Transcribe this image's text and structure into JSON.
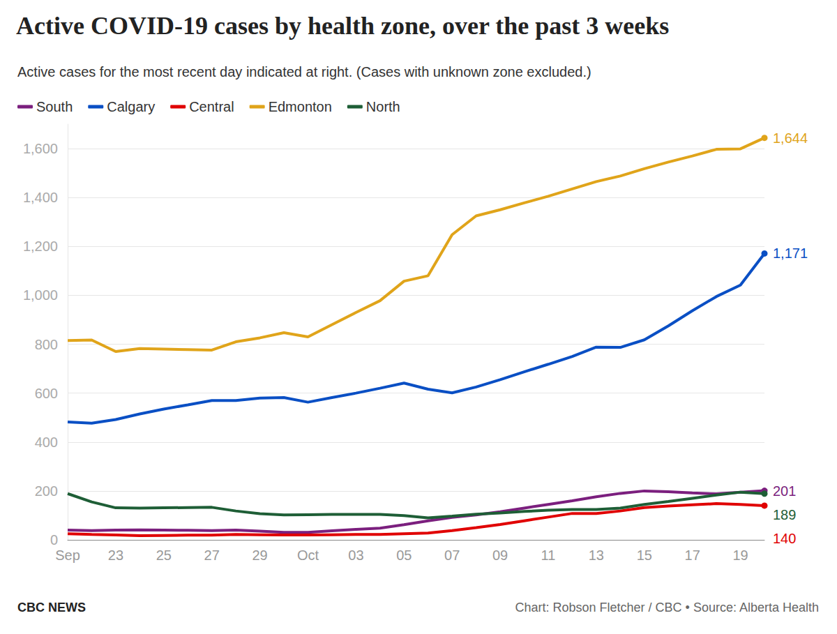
{
  "chart_data": {
    "type": "line",
    "title": "Active COVID-19 cases by health zone, over the past 3 weeks",
    "subtitle": "Active cases for the most recent day indicated at right. (Cases with unknown zone excluded.)",
    "annotations": [
      "CBC NEWS",
      "Chart: Robson Fletcher / CBC • Source: Alberta Health"
    ],
    "categories": [
      "Sep",
      null,
      "23",
      null,
      "25",
      null,
      "27",
      null,
      "29",
      null,
      "Oct",
      null,
      "03",
      null,
      "05",
      null,
      "07",
      null,
      "09",
      null,
      "11",
      null,
      "13",
      null,
      "15",
      null,
      "17",
      null,
      "19",
      null
    ],
    "series": [
      {
        "name": "South",
        "color": "#7b1f7e",
        "values": [
          40,
          38,
          40,
          41,
          40,
          39,
          38,
          40,
          36,
          31,
          31,
          37,
          43,
          48,
          62,
          78,
          92,
          102,
          115,
          130,
          145,
          160,
          176,
          190,
          200,
          197,
          192,
          188,
          195,
          201
        ],
        "value_labels": [
          null,
          null,
          null,
          null,
          null,
          null,
          null,
          null,
          null,
          null,
          null,
          null,
          null,
          null,
          null,
          null,
          null,
          null,
          null,
          null,
          null,
          null,
          null,
          null,
          null,
          null,
          null,
          null,
          null,
          "201"
        ]
      },
      {
        "name": "Calgary",
        "color": "#0a4fc4",
        "values": [
          482,
          477,
          492,
          515,
          535,
          552,
          570,
          570,
          580,
          582,
          563,
          582,
          600,
          620,
          641,
          616,
          601,
          625,
          655,
          687,
          718,
          750,
          788,
          787,
          818,
          875,
          937,
          995,
          1042,
          1171
        ],
        "value_labels": [
          null,
          null,
          null,
          null,
          null,
          null,
          null,
          null,
          null,
          null,
          null,
          null,
          null,
          null,
          null,
          null,
          null,
          null,
          null,
          null,
          null,
          null,
          null,
          null,
          null,
          null,
          null,
          null,
          null,
          "1,171"
        ]
      },
      {
        "name": "Central",
        "color": "#e00000",
        "values": [
          25,
          22,
          20,
          17,
          18,
          19,
          19,
          22,
          21,
          20,
          20,
          21,
          22,
          22,
          25,
          28,
          38,
          50,
          63,
          78,
          93,
          108,
          108,
          118,
          132,
          138,
          143,
          148,
          145,
          140
        ],
        "value_labels": [
          null,
          null,
          null,
          null,
          null,
          null,
          null,
          null,
          null,
          null,
          null,
          null,
          null,
          null,
          null,
          null,
          null,
          null,
          null,
          null,
          null,
          null,
          null,
          null,
          null,
          null,
          null,
          null,
          null,
          "140"
        ]
      },
      {
        "name": "Edmonton",
        "color": "#e0a41a",
        "values": [
          815,
          817,
          770,
          782,
          780,
          778,
          776,
          810,
          826,
          847,
          830,
          880,
          930,
          978,
          1058,
          1080,
          1248,
          1325,
          1350,
          1378,
          1405,
          1435,
          1465,
          1488,
          1518,
          1545,
          1570,
          1597,
          1599,
          1644
        ],
        "value_labels": [
          null,
          null,
          null,
          null,
          null,
          null,
          null,
          null,
          null,
          null,
          null,
          null,
          null,
          null,
          null,
          null,
          null,
          null,
          null,
          null,
          null,
          null,
          null,
          null,
          null,
          null,
          null,
          null,
          null,
          "1,644"
        ]
      },
      {
        "name": "North",
        "color": "#1e5e36",
        "values": [
          189,
          155,
          131,
          130,
          131,
          132,
          133,
          118,
          107,
          102,
          103,
          104,
          104,
          104,
          99,
          90,
          97,
          105,
          110,
          116,
          121,
          124,
          124,
          130,
          145,
          157,
          170,
          183,
          195,
          189
        ],
        "value_labels": [
          null,
          null,
          null,
          null,
          null,
          null,
          null,
          null,
          null,
          null,
          null,
          null,
          null,
          null,
          null,
          null,
          null,
          null,
          null,
          null,
          null,
          null,
          null,
          null,
          null,
          null,
          null,
          null,
          null,
          "189"
        ]
      }
    ],
    "ylim": [
      0,
      1700
    ],
    "yticks": [
      0,
      200,
      400,
      600,
      800,
      {
        "value": 1000,
        "label": "1,000"
      },
      {
        "value": 1200,
        "label": "1,200"
      },
      {
        "value": 1400,
        "label": "1,400"
      },
      {
        "value": 1600,
        "label": "1,600"
      }
    ],
    "grid": true,
    "legend": "top-left"
  }
}
